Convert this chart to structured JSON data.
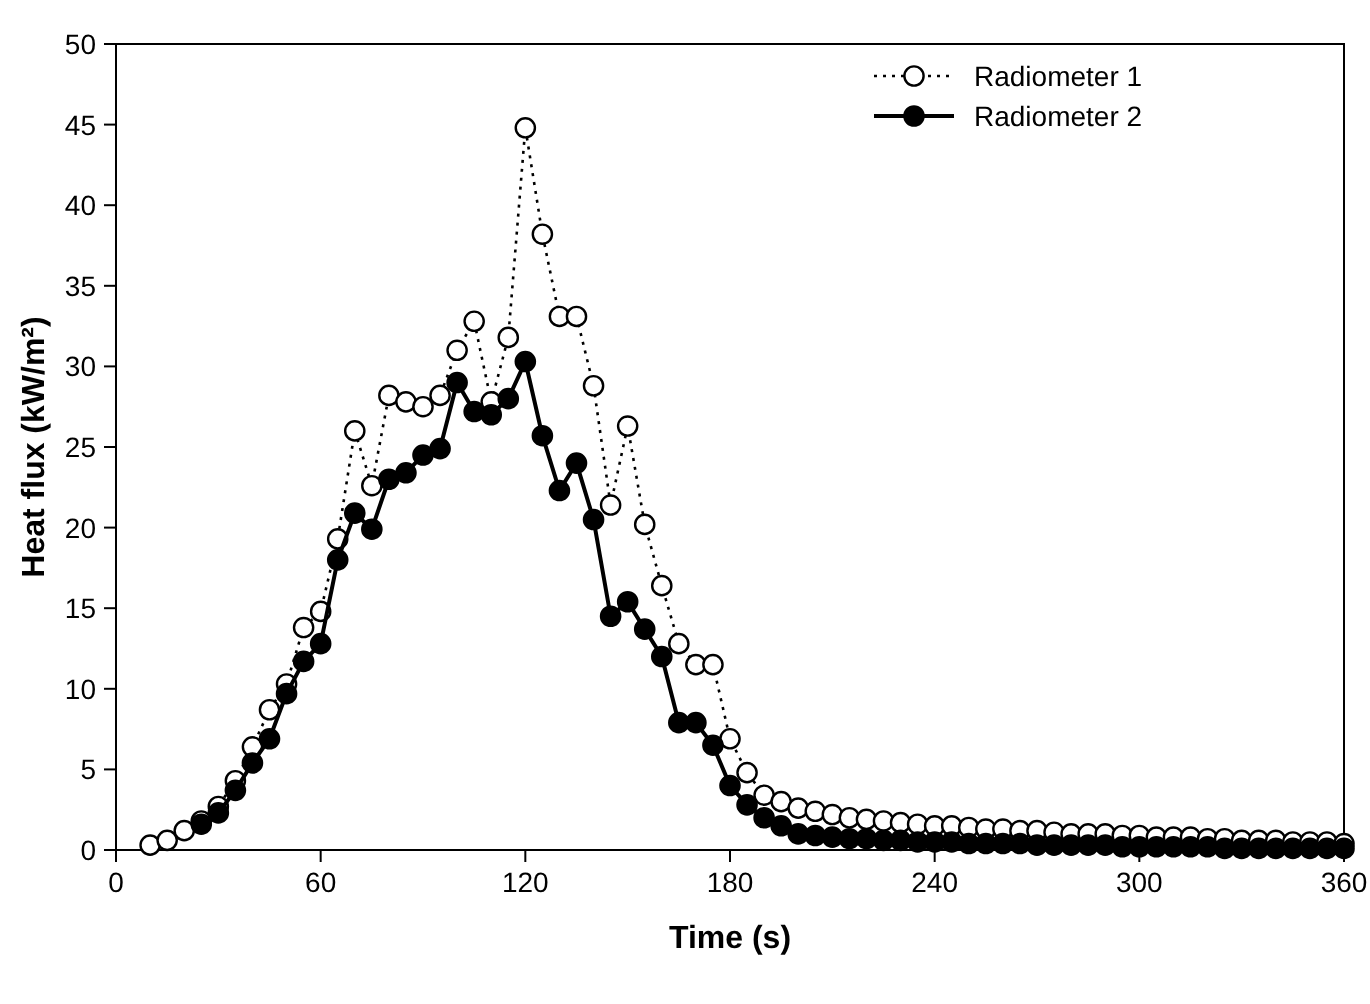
{
  "chart_data": {
    "type": "line",
    "xlabel": "Time (s)",
    "ylabel": "Heat flux (kW/m²)",
    "x": [
      10,
      15,
      20,
      25,
      30,
      35,
      40,
      45,
      50,
      55,
      60,
      65,
      70,
      75,
      80,
      85,
      90,
      95,
      100,
      105,
      110,
      115,
      120,
      125,
      130,
      135,
      140,
      145,
      150,
      155,
      160,
      165,
      170,
      175,
      180,
      185,
      190,
      195,
      200,
      205,
      210,
      215,
      220,
      225,
      230,
      235,
      240,
      245,
      250,
      255,
      260,
      265,
      270,
      275,
      280,
      285,
      290,
      295,
      300,
      305,
      310,
      315,
      320,
      325,
      330,
      335,
      340,
      345,
      350,
      355,
      360
    ],
    "xlim": [
      0,
      360
    ],
    "xticks": [
      0,
      60,
      120,
      180,
      240,
      300,
      360
    ],
    "ylim": [
      0,
      50
    ],
    "yticks": [
      0,
      5,
      10,
      15,
      20,
      25,
      30,
      35,
      40,
      45,
      50
    ],
    "series": [
      {
        "name": "Radiometer 1",
        "color": "#000000",
        "line_style": "dotted",
        "marker": "circle",
        "values": [
          0.3,
          0.6,
          1.2,
          1.8,
          2.7,
          4.3,
          6.4,
          8.7,
          10.3,
          13.8,
          14.8,
          19.3,
          26,
          22.6,
          28.2,
          27.8,
          27.5,
          28.2,
          31,
          32.8,
          27.8,
          31.8,
          44.8,
          38.2,
          33.1,
          33.1,
          28.8,
          21.4,
          26.3,
          20.2,
          16.4,
          12.8,
          11.5,
          11.5,
          6.9,
          4.8,
          3.4,
          3,
          2.6,
          2.4,
          2.2,
          2,
          1.9,
          1.8,
          1.7,
          1.6,
          1.5,
          1.5,
          1.4,
          1.3,
          1.3,
          1.2,
          1.2,
          1.1,
          1,
          1,
          1,
          0.9,
          0.9,
          0.8,
          0.8,
          0.8,
          0.7,
          0.7,
          0.6,
          0.6,
          0.6,
          0.5,
          0.5,
          0.5,
          0.4
        ]
      },
      {
        "name": "Radiometer 2",
        "color": "#000000",
        "line_style": "solid",
        "marker": "circle",
        "values": [
          null,
          null,
          null,
          1.6,
          2.3,
          3.7,
          5.4,
          6.9,
          9.7,
          11.7,
          12.8,
          18,
          20.9,
          19.9,
          23,
          23.4,
          24.5,
          24.9,
          29,
          27.2,
          27,
          28,
          30.3,
          25.7,
          22.3,
          24,
          20.5,
          14.5,
          15.4,
          13.7,
          12,
          7.9,
          7.9,
          6.5,
          4,
          2.8,
          2,
          1.5,
          1,
          0.9,
          0.8,
          0.7,
          0.7,
          0.6,
          0.6,
          0.5,
          0.5,
          0.5,
          0.4,
          0.4,
          0.4,
          0.4,
          0.3,
          0.3,
          0.3,
          0.3,
          0.3,
          0.2,
          0.2,
          0.2,
          0.2,
          0.2,
          0.2,
          0.1,
          0.1,
          0.1,
          0.1,
          0.1,
          0.1,
          0.1,
          0.1
        ]
      }
    ],
    "legend": "top right",
    "grid": false
  }
}
